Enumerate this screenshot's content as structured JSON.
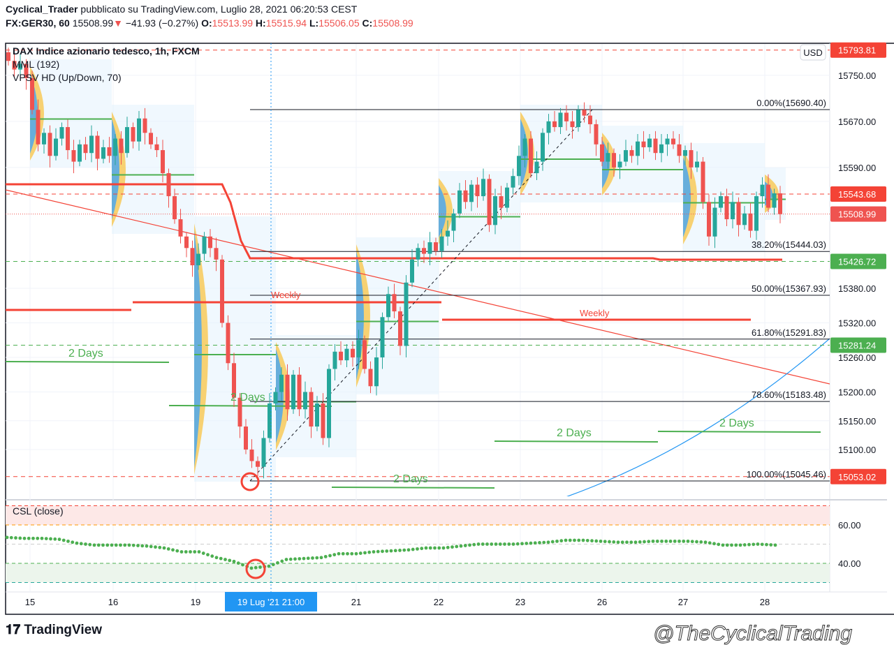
{
  "header": {
    "author": "Cyclical_Trader",
    "published": "pubblicato su TradingView.com, Luglio 28, 2021 06:20:53 CEST",
    "symbol": "FX:GER30, 60",
    "last": "15508.99",
    "change": "−41.93 (−0.27%)",
    "o_label": "O:",
    "o": "15513.99",
    "h_label": "H:",
    "h": "15515.94",
    "l_label": "L:",
    "l": "15506.05",
    "c_label": "C:",
    "c": "15508.99"
  },
  "legend": {
    "title": "DAX Indice azionario tedesco, 1h, FXCM",
    "ind1": "MML (192)",
    "ind2": "VPSV HD (Up/Down, 70)",
    "csl": "CSL (close)"
  },
  "currency": "USD",
  "footer": {
    "logo": "TradingView",
    "watermark": "@TheCyclicalTrading"
  },
  "colors": {
    "up": "#26a69a",
    "down": "#ef5350",
    "green": "#4caf50",
    "red": "#f44336",
    "blue": "#2196f3"
  },
  "chart_data": {
    "type": "candlestick",
    "title": "DAX Indice azionario tedesco, 1h, FXCM",
    "x_ticks": [
      "15",
      "16",
      "19",
      "21",
      "22",
      "23",
      "26",
      "27",
      "28"
    ],
    "crosshair_label": "19 Lug '21   21:00",
    "y_ticks": [
      "15750.00",
      "15670.00",
      "15590.00",
      "15380.00",
      "15320.00",
      "15260.00",
      "15200.00",
      "15150.00",
      "15100.00"
    ],
    "closes": [
      15775,
      15760,
      15770,
      15745,
      15690,
      15630,
      15650,
      15610,
      15640,
      15660,
      15620,
      15600,
      15630,
      15615,
      15645,
      15605,
      15625,
      15610,
      15640,
      15615,
      15660,
      15635,
      15675,
      15650,
      15630,
      15620,
      15580,
      15540,
      15500,
      15470,
      15450,
      15420,
      15440,
      15470,
      15450,
      15430,
      15320,
      15250,
      15190,
      15140,
      15100,
      15080,
      15070,
      15120,
      15180,
      15200,
      15230,
      15170,
      15230,
      15170,
      15200,
      15140,
      15180,
      15120,
      15240,
      15270,
      15255,
      15275,
      15260,
      15290,
      15240,
      15210,
      15260,
      15330,
      15370,
      15340,
      15280,
      15390,
      15430,
      15450,
      15440,
      15460,
      15445,
      15470,
      15480,
      15510,
      15550,
      15530,
      15560,
      15540,
      15570,
      15490,
      15540,
      15520,
      15555,
      15575,
      15610,
      15640,
      15580,
      15600,
      15650,
      15670,
      15660,
      15685,
      15670,
      15660,
      15690,
      15680,
      15665,
      15630,
      15600,
      15615,
      15590,
      15600,
      15620,
      15610,
      15635,
      15625,
      15640,
      15615,
      15630,
      15640,
      15630,
      15610,
      15620,
      15590,
      15600,
      15530,
      15470,
      15520,
      15540,
      15500,
      15530,
      15490,
      15510,
      15480,
      15540,
      15560,
      15520,
      15545,
      15508.99
    ],
    "fib_levels": [
      {
        "label": "0.00%(15690.40)",
        "price": 15690.4
      },
      {
        "label": "38.20%(15444.03)",
        "price": 15444.03
      },
      {
        "label": "50.00%(15367.93)",
        "price": 15367.93
      },
      {
        "label": "61.80%(15291.83)",
        "price": 15291.83
      },
      {
        "label": "78.60%(15183.48)",
        "price": 15183.48
      },
      {
        "label": "100.00%(15045.46)",
        "price": 15045.46
      }
    ],
    "price_labels": [
      {
        "text": "15793.81",
        "price": 15793.81,
        "color": "#f44336"
      },
      {
        "text": "15543.68",
        "price": 15543.68,
        "color": "#f44336"
      },
      {
        "text": "15508.99",
        "price": 15508.99,
        "color": "#ef5350"
      },
      {
        "text": "15426.72",
        "price": 15426.72,
        "color": "#4caf50"
      },
      {
        "text": "15281.24",
        "price": 15281.24,
        "color": "#4caf50"
      },
      {
        "text": "15053.02",
        "price": 15053.02,
        "color": "#f44336"
      }
    ],
    "annotations": {
      "weekly": "Weekly",
      "two_days": "2 Days"
    },
    "csl": {
      "y_ticks": [
        "60.00",
        "40.00"
      ],
      "upper_band": [
        60,
        70
      ],
      "lower_band": [
        30,
        40
      ],
      "values": [
        53.5,
        53,
        53,
        52.5,
        50.5,
        49.5,
        49.5,
        49.5,
        49,
        48,
        46,
        46,
        43,
        41,
        37.5,
        38.5,
        42,
        42.5,
        43,
        45,
        45,
        46,
        46.5,
        47,
        48,
        48,
        49,
        50,
        50,
        50,
        50.5,
        51,
        52,
        52,
        51.5,
        51,
        51,
        51.5,
        51.5,
        51.5,
        51,
        49.5,
        49.5,
        50,
        49.5
      ]
    }
  }
}
